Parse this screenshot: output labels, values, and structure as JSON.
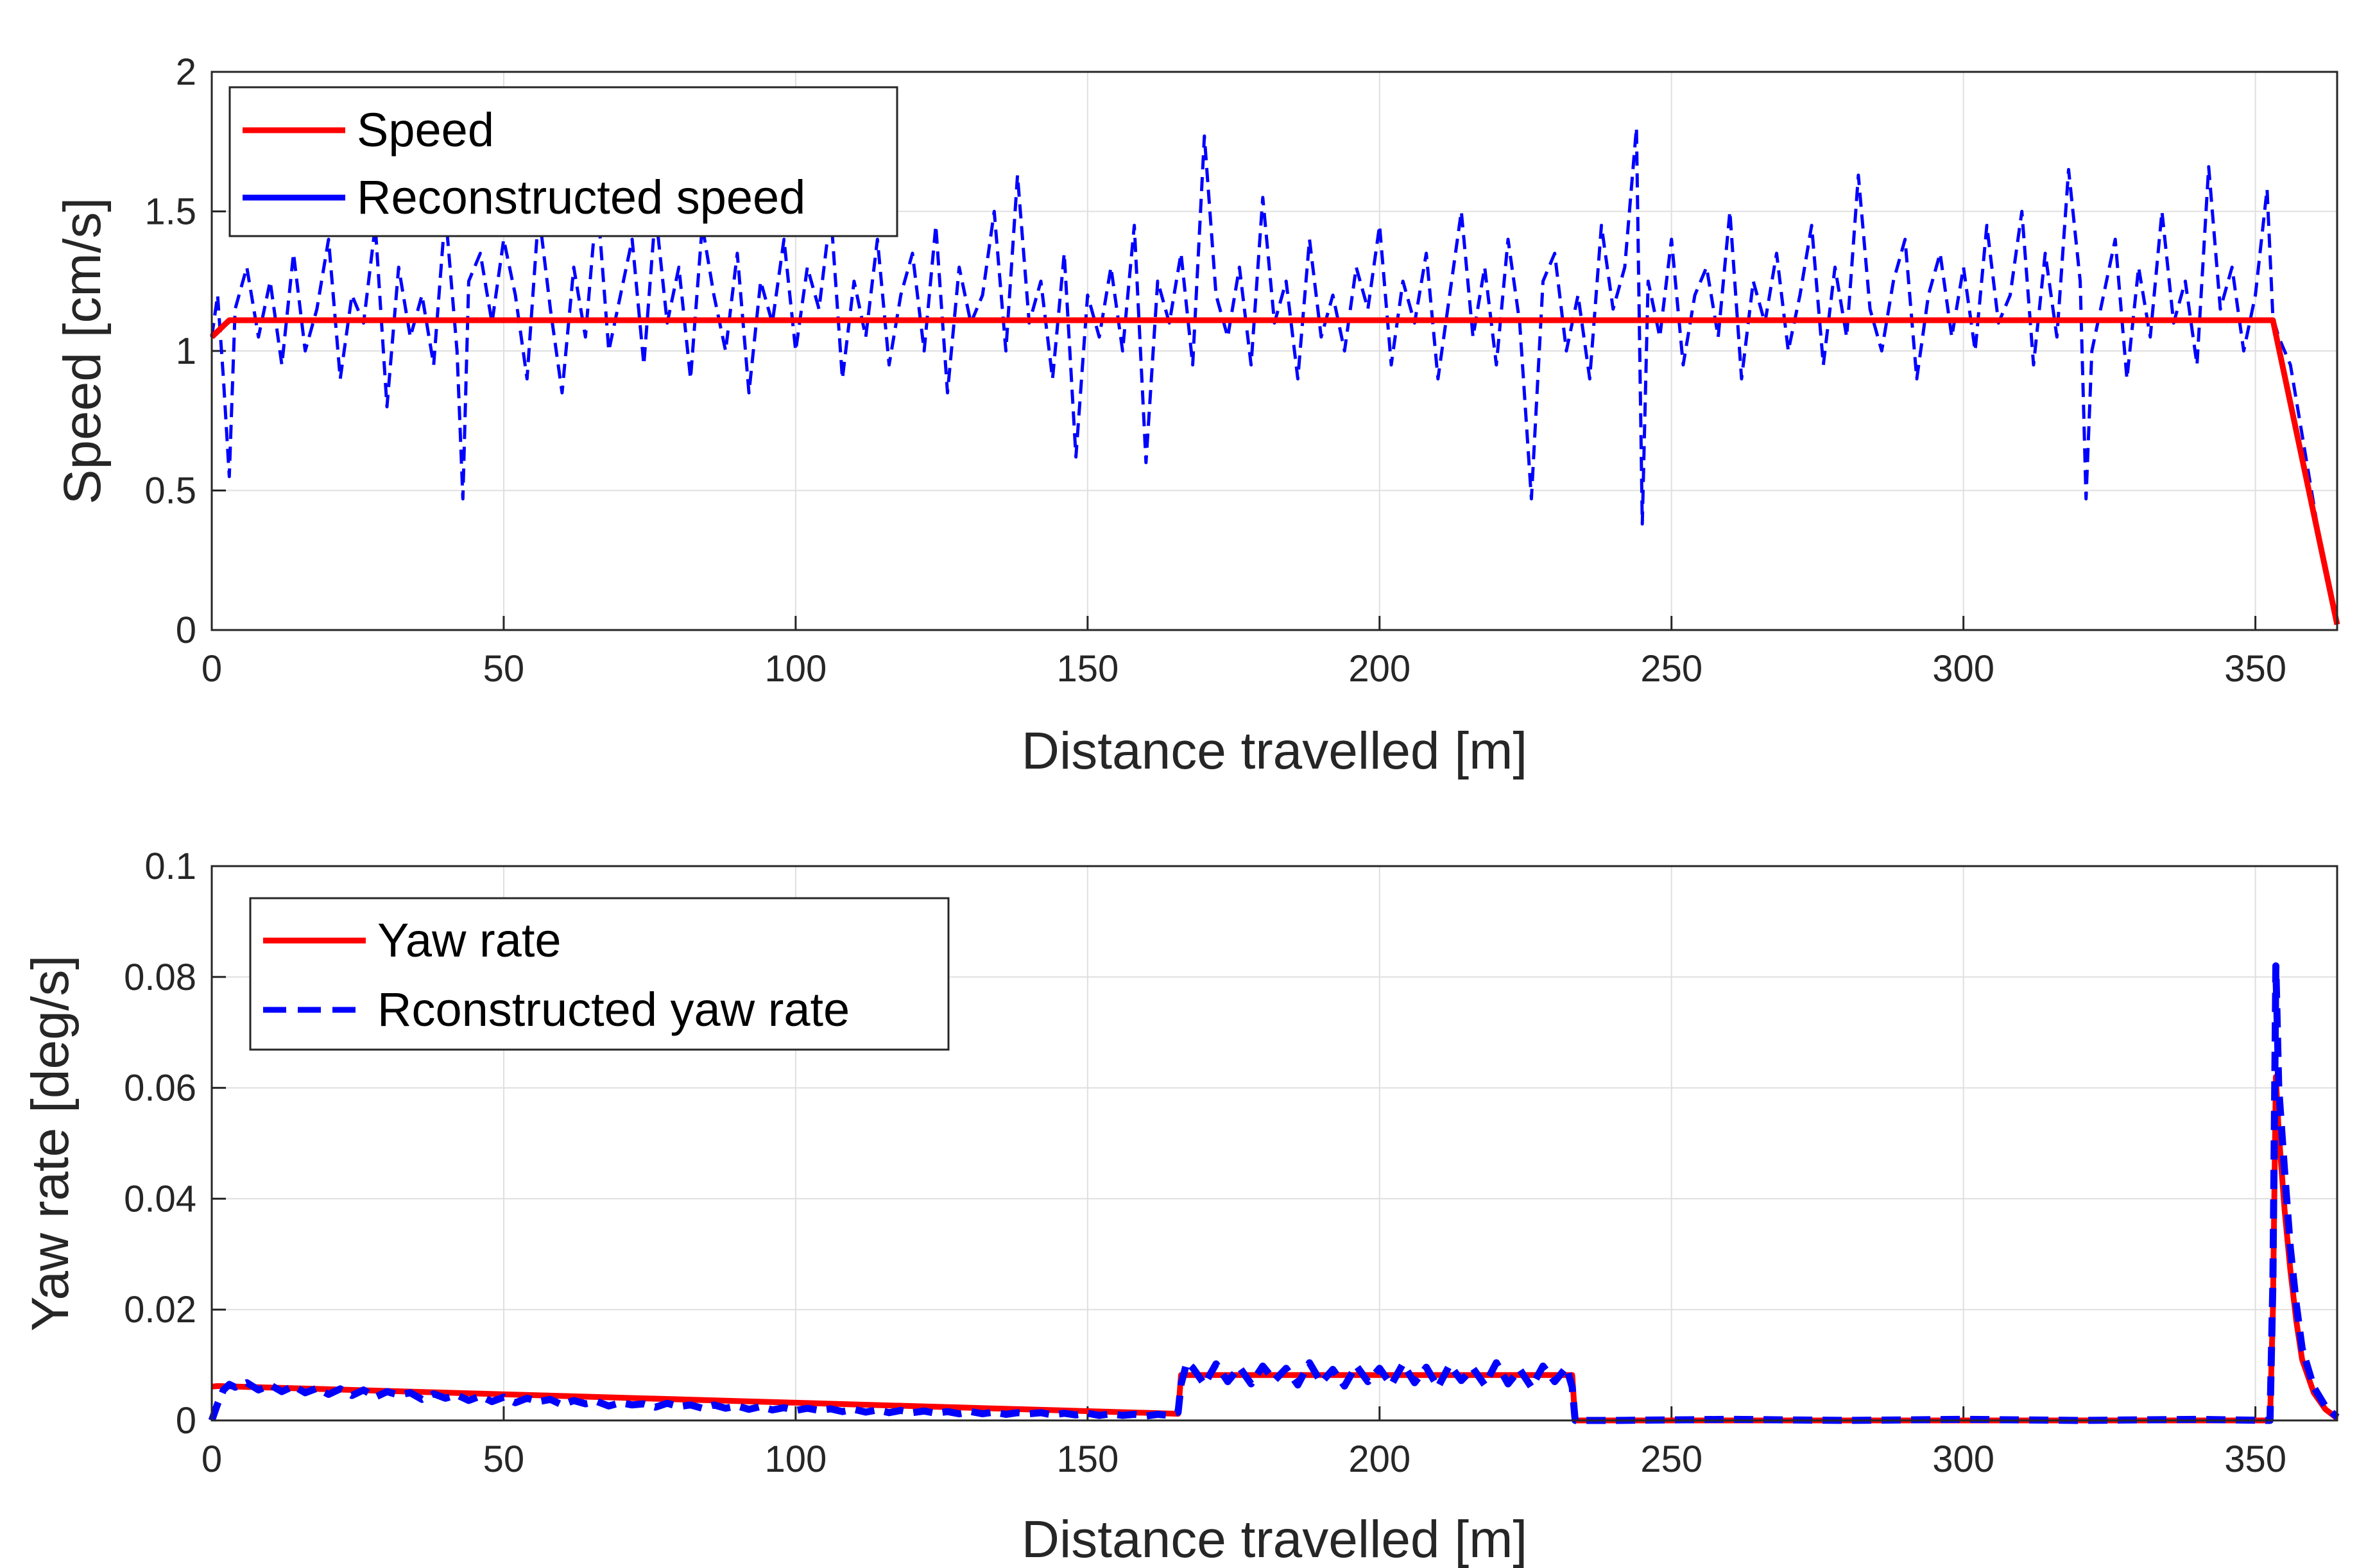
{
  "chart_data": [
    {
      "type": "line",
      "xlabel": "Distance travelled [m]",
      "ylabel": "Speed [cm/s]",
      "xlim": [
        0,
        364
      ],
      "ylim": [
        0,
        2
      ],
      "xticks": [
        0,
        50,
        100,
        150,
        200,
        250,
        300,
        350
      ],
      "yticks": [
        0,
        0.5,
        1,
        1.5,
        2
      ],
      "ytick_labels": [
        "0",
        "0.5",
        "1",
        "1.5",
        "2"
      ],
      "grid": true,
      "legend_position": "top-left",
      "series": [
        {
          "name": "Speed",
          "color": "#ff0000",
          "style": "solid",
          "x": [
            0,
            3,
            353,
            364
          ],
          "y": [
            1.05,
            1.11,
            1.11,
            0.02
          ]
        },
        {
          "name": "Reconstructed speed",
          "color": "#0000ff",
          "style": "dashed",
          "x": [
            0,
            1,
            2,
            3,
            4,
            6,
            8,
            10,
            12,
            14,
            16,
            18,
            20,
            22,
            24,
            26,
            28,
            30,
            32,
            34,
            36,
            38,
            40,
            42,
            43,
            44,
            46,
            48,
            50,
            52,
            54,
            56,
            58,
            60,
            62,
            64,
            66,
            68,
            70,
            72,
            74,
            76,
            78,
            80,
            82,
            84,
            86,
            88,
            90,
            92,
            94,
            96,
            98,
            100,
            102,
            104,
            106,
            108,
            110,
            112,
            114,
            116,
            118,
            120,
            122,
            124,
            126,
            128,
            130,
            132,
            134,
            136,
            138,
            140,
            142,
            144,
            146,
            148,
            150,
            152,
            154,
            156,
            158,
            160,
            162,
            164,
            166,
            168,
            170,
            172,
            174,
            176,
            178,
            180,
            182,
            184,
            186,
            188,
            190,
            192,
            194,
            196,
            198,
            200,
            202,
            204,
            206,
            208,
            210,
            212,
            214,
            216,
            218,
            220,
            222,
            224,
            226,
            228,
            230,
            232,
            234,
            236,
            238,
            240,
            242,
            244,
            245,
            246,
            248,
            250,
            252,
            254,
            256,
            258,
            260,
            262,
            264,
            266,
            268,
            270,
            272,
            274,
            276,
            278,
            280,
            282,
            284,
            286,
            288,
            290,
            292,
            294,
            296,
            298,
            300,
            302,
            304,
            306,
            308,
            310,
            312,
            314,
            316,
            318,
            320,
            321,
            322,
            324,
            326,
            328,
            330,
            332,
            334,
            336,
            338,
            340,
            342,
            344,
            346,
            348,
            350,
            352,
            353,
            354,
            356,
            358,
            360,
            362,
            364
          ],
          "y": [
            1.05,
            1.2,
            0.9,
            0.55,
            1.15,
            1.3,
            1.05,
            1.25,
            0.95,
            1.35,
            1.0,
            1.15,
            1.4,
            0.9,
            1.2,
            1.1,
            1.45,
            0.8,
            1.3,
            1.05,
            1.2,
            0.95,
            1.5,
            1.0,
            0.47,
            1.25,
            1.35,
            1.1,
            1.4,
            1.2,
            0.9,
            1.5,
            1.15,
            0.85,
            1.3,
            1.05,
            1.55,
            1.0,
            1.2,
            1.4,
            0.95,
            1.5,
            1.1,
            1.3,
            0.9,
            1.45,
            1.2,
            1.0,
            1.35,
            0.85,
            1.25,
            1.1,
            1.4,
            1.0,
            1.3,
            1.15,
            1.5,
            0.9,
            1.25,
            1.05,
            1.4,
            0.95,
            1.2,
            1.35,
            1.0,
            1.45,
            0.85,
            1.3,
            1.1,
            1.2,
            1.5,
            1.0,
            1.63,
            1.1,
            1.25,
            0.9,
            1.35,
            0.62,
            1.2,
            1.05,
            1.3,
            1.0,
            1.45,
            0.6,
            1.25,
            1.1,
            1.35,
            0.95,
            1.77,
            1.2,
            1.05,
            1.3,
            0.95,
            1.55,
            1.1,
            1.25,
            0.9,
            1.4,
            1.05,
            1.2,
            1.0,
            1.3,
            1.15,
            1.45,
            0.95,
            1.25,
            1.1,
            1.35,
            0.9,
            1.2,
            1.5,
            1.05,
            1.3,
            0.95,
            1.4,
            1.1,
            0.47,
            1.25,
            1.35,
            1.0,
            1.2,
            0.9,
            1.45,
            1.15,
            1.3,
            1.8,
            0.38,
            1.25,
            1.05,
            1.4,
            0.95,
            1.2,
            1.3,
            1.05,
            1.5,
            0.9,
            1.25,
            1.1,
            1.35,
            1.0,
            1.2,
            1.45,
            0.95,
            1.3,
            1.05,
            1.63,
            1.15,
            1.0,
            1.25,
            1.4,
            0.9,
            1.2,
            1.35,
            1.05,
            1.3,
            1.0,
            1.45,
            1.1,
            1.2,
            1.5,
            0.95,
            1.35,
            1.05,
            1.65,
            1.25,
            0.47,
            1.0,
            1.2,
            1.4,
            0.9,
            1.3,
            1.05,
            1.5,
            1.1,
            1.25,
            0.95,
            1.66,
            1.15,
            1.3,
            1.0,
            1.2,
            1.58,
            1.12,
            1.05,
            0.95,
            0.7,
            0.45,
            0.2,
            0.02
          ]
        }
      ]
    },
    {
      "type": "line",
      "xlabel": "Distance travelled [m]",
      "ylabel": "Yaw rate [deg/s]",
      "xlim": [
        0,
        364
      ],
      "ylim": [
        0,
        0.1
      ],
      "xticks": [
        0,
        50,
        100,
        150,
        200,
        250,
        300,
        350
      ],
      "yticks": [
        0,
        0.02,
        0.04,
        0.06,
        0.08,
        0.1
      ],
      "ytick_labels": [
        "0",
        "0.02",
        "0.04",
        "0.06",
        "0.08",
        "0.1"
      ],
      "grid": true,
      "legend_position": "top-left",
      "series": [
        {
          "name": "Yaw rate",
          "color": "#ff0000",
          "style": "solid",
          "x": [
            0,
            1,
            165.5,
            166,
            233,
            233.5,
            352.5,
            353,
            353.5,
            354,
            355,
            356,
            357,
            358,
            360,
            362,
            364
          ],
          "y": [
            0.0061,
            0.0062,
            0.0012,
            0.0082,
            0.0082,
            0.0,
            0.0,
            0.02,
            0.062,
            0.052,
            0.038,
            0.027,
            0.018,
            0.011,
            0.005,
            0.002,
            0.0004
          ]
        },
        {
          "name": "Rconstructed yaw rate",
          "color": "#0000ff",
          "style": "dashed",
          "x": [
            0,
            1,
            2,
            3,
            4,
            6,
            8,
            10,
            12,
            14,
            16,
            18,
            20,
            22,
            24,
            26,
            28,
            30,
            32,
            34,
            36,
            38,
            40,
            42,
            44,
            46,
            48,
            50,
            52,
            54,
            56,
            58,
            60,
            62,
            64,
            66,
            68,
            70,
            72,
            74,
            76,
            78,
            80,
            82,
            84,
            86,
            88,
            90,
            92,
            94,
            96,
            98,
            100,
            102,
            104,
            106,
            108,
            110,
            112,
            114,
            116,
            118,
            120,
            122,
            124,
            126,
            128,
            130,
            132,
            134,
            136,
            138,
            140,
            142,
            144,
            146,
            148,
            150,
            152,
            154,
            156,
            158,
            160,
            162,
            164,
            165.5,
            166,
            167,
            168,
            170,
            172,
            174,
            176,
            178,
            180,
            182,
            184,
            186,
            188,
            190,
            192,
            194,
            196,
            198,
            200,
            202,
            204,
            206,
            208,
            210,
            212,
            214,
            216,
            218,
            220,
            222,
            224,
            226,
            228,
            230,
            232,
            233,
            233.5,
            240,
            260,
            280,
            300,
            320,
            340,
            352.5,
            353,
            353.5,
            354,
            355,
            356,
            357,
            358,
            360,
            362,
            364
          ],
          "y": [
            0.0,
            0.003,
            0.0055,
            0.0065,
            0.006,
            0.0068,
            0.0055,
            0.0064,
            0.0052,
            0.0062,
            0.005,
            0.0058,
            0.0047,
            0.0057,
            0.0045,
            0.0055,
            0.0042,
            0.0052,
            0.0046,
            0.005,
            0.0038,
            0.0048,
            0.004,
            0.0046,
            0.0036,
            0.0044,
            0.0034,
            0.0042,
            0.0032,
            0.004,
            0.0034,
            0.0038,
            0.0028,
            0.0036,
            0.003,
            0.0034,
            0.0026,
            0.0032,
            0.0028,
            0.003,
            0.0024,
            0.0031,
            0.0025,
            0.0028,
            0.0022,
            0.0028,
            0.0022,
            0.0026,
            0.002,
            0.0025,
            0.0019,
            0.0023,
            0.0018,
            0.0022,
            0.0018,
            0.0021,
            0.0016,
            0.002,
            0.0015,
            0.0019,
            0.0014,
            0.0018,
            0.0014,
            0.0017,
            0.0013,
            0.0016,
            0.0012,
            0.0016,
            0.0012,
            0.0015,
            0.0011,
            0.0014,
            0.0012,
            0.0014,
            0.001,
            0.0013,
            0.001,
            0.0013,
            0.0009,
            0.0012,
            0.0009,
            0.0011,
            0.0008,
            0.0011,
            0.0009,
            0.0015,
            0.0065,
            0.0105,
            0.0095,
            0.0065,
            0.0102,
            0.007,
            0.0096,
            0.0066,
            0.0098,
            0.0072,
            0.0094,
            0.0064,
            0.0104,
            0.0068,
            0.0092,
            0.0062,
            0.0099,
            0.007,
            0.0094,
            0.0064,
            0.0102,
            0.0068,
            0.0096,
            0.006,
            0.01,
            0.0072,
            0.0094,
            0.0064,
            0.0104,
            0.0066,
            0.0092,
            0.006,
            0.0098,
            0.007,
            0.0096,
            0.006,
            0.0,
            0.0,
            0.0002,
            0.0,
            0.0002,
            0.0,
            0.0002,
            0.0,
            0.025,
            0.082,
            0.06,
            0.045,
            0.031,
            0.021,
            0.013,
            0.006,
            0.0025,
            0.0006
          ]
        }
      ]
    }
  ]
}
